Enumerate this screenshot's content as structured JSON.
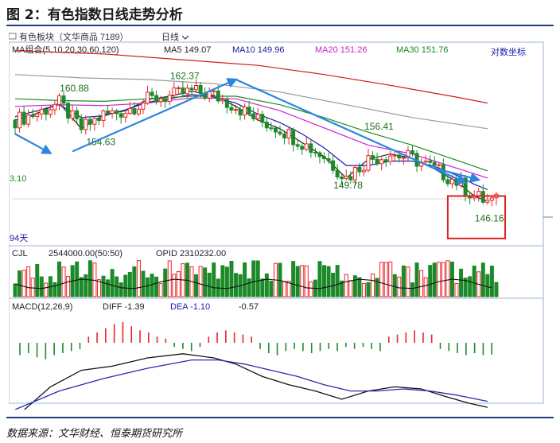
{
  "figure_title": "图 2：有色指数日线走势分析",
  "source_note": "数据来源：文华财经、恒泰期货研究所",
  "chart_data": {
    "type": "candlestick",
    "header": {
      "instrument": "有色板块（文华商品 7189）",
      "period": "日线"
    },
    "price_panel": {
      "indicator_label": "MA组合(5,10,20,30,60,120)",
      "ma_readouts": [
        {
          "label": "MA5 149.07",
          "color": "#222222"
        },
        {
          "label": "MA10 149.96",
          "color": "#1a1aa8"
        },
        {
          "label": "MA20 151.26",
          "color": "#cc22cc"
        },
        {
          "label": "MA30 151.76",
          "color": "#1f8a1f"
        }
      ],
      "scale_label": "对数坐标",
      "left_edge_label": "3.10",
      "bottom_left_label": "94天",
      "ylim": [
        144.5,
        165
      ],
      "annotations": [
        {
          "text": "160.88",
          "x": 13,
          "y": 160.88
        },
        {
          "text": "162.37",
          "x": 38,
          "y": 162.37
        },
        {
          "text": "154.63",
          "x": 19,
          "y": 154.63
        },
        {
          "text": "156.41",
          "x": 82,
          "y": 156.41
        },
        {
          "text": "149.78",
          "x": 75,
          "y": 149.78
        },
        {
          "text": "146.16",
          "x": 107,
          "y": 146.16
        }
      ],
      "trend_arrows": [
        {
          "from": [
            0,
            156.2
          ],
          "to": [
            8,
            154.0
          ]
        },
        {
          "from": [
            13,
            154.2
          ],
          "to": [
            50,
            162.6
          ]
        },
        {
          "from": [
            50,
            162.6
          ],
          "to": [
            102,
            150.7
          ]
        },
        {
          "from": [
            95,
            152.3
          ],
          "to": [
            105,
            151.0
          ]
        }
      ],
      "highlight": {
        "x_from": 98,
        "x_to": 111,
        "y_from": 144.6,
        "y_to": 149.2,
        "color": "#e02020"
      },
      "ma_lines": [
        {
          "name": "MA5",
          "color": "#222222",
          "points": [
            [
              0,
              157.8
            ],
            [
              5,
              158.6
            ],
            [
              10,
              159.8
            ],
            [
              15,
              156.8
            ],
            [
              20,
              158.4
            ],
            [
              25,
              158.9
            ],
            [
              30,
              160.2
            ],
            [
              35,
              160.6
            ],
            [
              40,
              161.2
            ],
            [
              45,
              160.7
            ],
            [
              50,
              159.4
            ],
            [
              55,
              157.8
            ],
            [
              60,
              156.8
            ],
            [
              65,
              155.2
            ],
            [
              70,
              153.6
            ],
            [
              75,
              151.2
            ],
            [
              80,
              153.3
            ],
            [
              85,
              153.9
            ],
            [
              90,
              153.4
            ],
            [
              95,
              152.2
            ],
            [
              100,
              150.8
            ],
            [
              104,
              149.2
            ],
            [
              107,
              148.6
            ]
          ]
        },
        {
          "name": "MA10",
          "color": "#1a1aa8",
          "points": [
            [
              0,
              158.2
            ],
            [
              5,
              158.9
            ],
            [
              10,
              159.6
            ],
            [
              15,
              158.1
            ],
            [
              20,
              158.3
            ],
            [
              25,
              159.0
            ],
            [
              30,
              159.9
            ],
            [
              35,
              160.3
            ],
            [
              40,
              160.8
            ],
            [
              45,
              160.5
            ],
            [
              50,
              159.8
            ],
            [
              55,
              158.5
            ],
            [
              60,
              157.5
            ],
            [
              65,
              156.2
            ],
            [
              70,
              154.6
            ],
            [
              75,
              152.6
            ],
            [
              80,
              152.6
            ],
            [
              85,
              153.1
            ],
            [
              90,
              153.1
            ],
            [
              95,
              152.5
            ],
            [
              100,
              151.5
            ],
            [
              104,
              150.5
            ],
            [
              107,
              149.9
            ]
          ]
        },
        {
          "name": "MA20",
          "color": "#cc22cc",
          "points": [
            [
              0,
              159.4
            ],
            [
              10,
              159.6
            ],
            [
              20,
              159.5
            ],
            [
              30,
              159.8
            ],
            [
              40,
              160.4
            ],
            [
              50,
              160.3
            ],
            [
              60,
              158.9
            ],
            [
              70,
              156.9
            ],
            [
              80,
              154.9
            ],
            [
              90,
              153.9
            ],
            [
              100,
              152.3
            ],
            [
              107,
              151.2
            ]
          ]
        },
        {
          "name": "MA30",
          "color": "#1f8a1f",
          "points": [
            [
              0,
              160.3
            ],
            [
              10,
              160.1
            ],
            [
              20,
              160.0
            ],
            [
              30,
              160.3
            ],
            [
              40,
              160.6
            ],
            [
              50,
              160.6
            ],
            [
              60,
              159.6
            ],
            [
              70,
              158.1
            ],
            [
              80,
              156.4
            ],
            [
              90,
              154.9
            ],
            [
              100,
              153.2
            ],
            [
              107,
              152.0
            ]
          ]
        },
        {
          "name": "MA60",
          "color": "#9a9a9a",
          "points": [
            [
              0,
              163.2
            ],
            [
              15,
              162.8
            ],
            [
              30,
              162.6
            ],
            [
              45,
              162.1
            ],
            [
              60,
              161.1
            ],
            [
              75,
              159.6
            ],
            [
              90,
              158.1
            ],
            [
              107,
              156.8
            ]
          ]
        },
        {
          "name": "MA120",
          "color": "#d01818",
          "points": [
            [
              0,
              166.1
            ],
            [
              20,
              165.7
            ],
            [
              40,
              164.9
            ],
            [
              55,
              164.3
            ],
            [
              70,
              163.2
            ],
            [
              85,
              161.9
            ],
            [
              100,
              160.5
            ],
            [
              107,
              159.8
            ]
          ]
        }
      ]
    },
    "volume_panel": {
      "label": "CJL",
      "readout": "2544000.00(50:50)",
      "opid_label": "OPID 2310232.00"
    },
    "macd_panel": {
      "label": "MACD(12,26,9)",
      "diff_label": "DIFF -1.39",
      "dea_label": "DEA -1.10",
      "macd_value": "-0.57",
      "diff_line": {
        "color": "#111111",
        "points": [
          [
            0,
            -1.9
          ],
          [
            8,
            -0.4
          ],
          [
            15,
            0.4
          ],
          [
            22,
            0.6
          ],
          [
            30,
            1.0
          ],
          [
            38,
            1.2
          ],
          [
            45,
            1.0
          ],
          [
            50,
            0.7
          ],
          [
            56,
            0.1
          ],
          [
            62,
            -0.3
          ],
          [
            68,
            -0.6
          ],
          [
            74,
            -1.0
          ],
          [
            80,
            -0.6
          ],
          [
            86,
            -0.4
          ],
          [
            92,
            -0.5
          ],
          [
            98,
            -0.9
          ],
          [
            103,
            -1.2
          ],
          [
            107,
            -1.39
          ]
        ]
      },
      "dea_line": {
        "color": "#2a2ab0",
        "points": [
          [
            0,
            -1.5
          ],
          [
            10,
            -0.6
          ],
          [
            20,
            0.0
          ],
          [
            30,
            0.5
          ],
          [
            40,
            0.9
          ],
          [
            46,
            0.9
          ],
          [
            52,
            0.7
          ],
          [
            58,
            0.4
          ],
          [
            64,
            0.1
          ],
          [
            70,
            -0.3
          ],
          [
            76,
            -0.6
          ],
          [
            82,
            -0.6
          ],
          [
            88,
            -0.5
          ],
          [
            94,
            -0.6
          ],
          [
            100,
            -0.8
          ],
          [
            107,
            -1.1
          ]
        ]
      },
      "histogram": [
        -0.6,
        -0.5,
        -0.7,
        -0.8,
        -0.6,
        -0.5,
        -0.4,
        -0.3,
        0.3,
        0.5,
        0.7,
        0.9,
        1.0,
        0.8,
        0.6,
        0.5,
        0.3,
        0.2,
        -0.2,
        -0.3,
        -0.4,
        -0.2,
        0.3,
        0.5,
        0.6,
        0.5,
        0.4,
        0.3,
        -0.3,
        -0.5,
        -0.6,
        -0.4,
        -0.3,
        -0.4,
        -0.5,
        -0.4,
        -0.3,
        -0.4,
        -0.2,
        -0.3,
        -0.2,
        -0.3,
        -0.4,
        0.3,
        0.4,
        0.5,
        0.6,
        0.5,
        0.4,
        -0.3,
        -0.4,
        -0.5,
        -0.6,
        -0.5,
        -0.6,
        -0.57
      ]
    }
  }
}
